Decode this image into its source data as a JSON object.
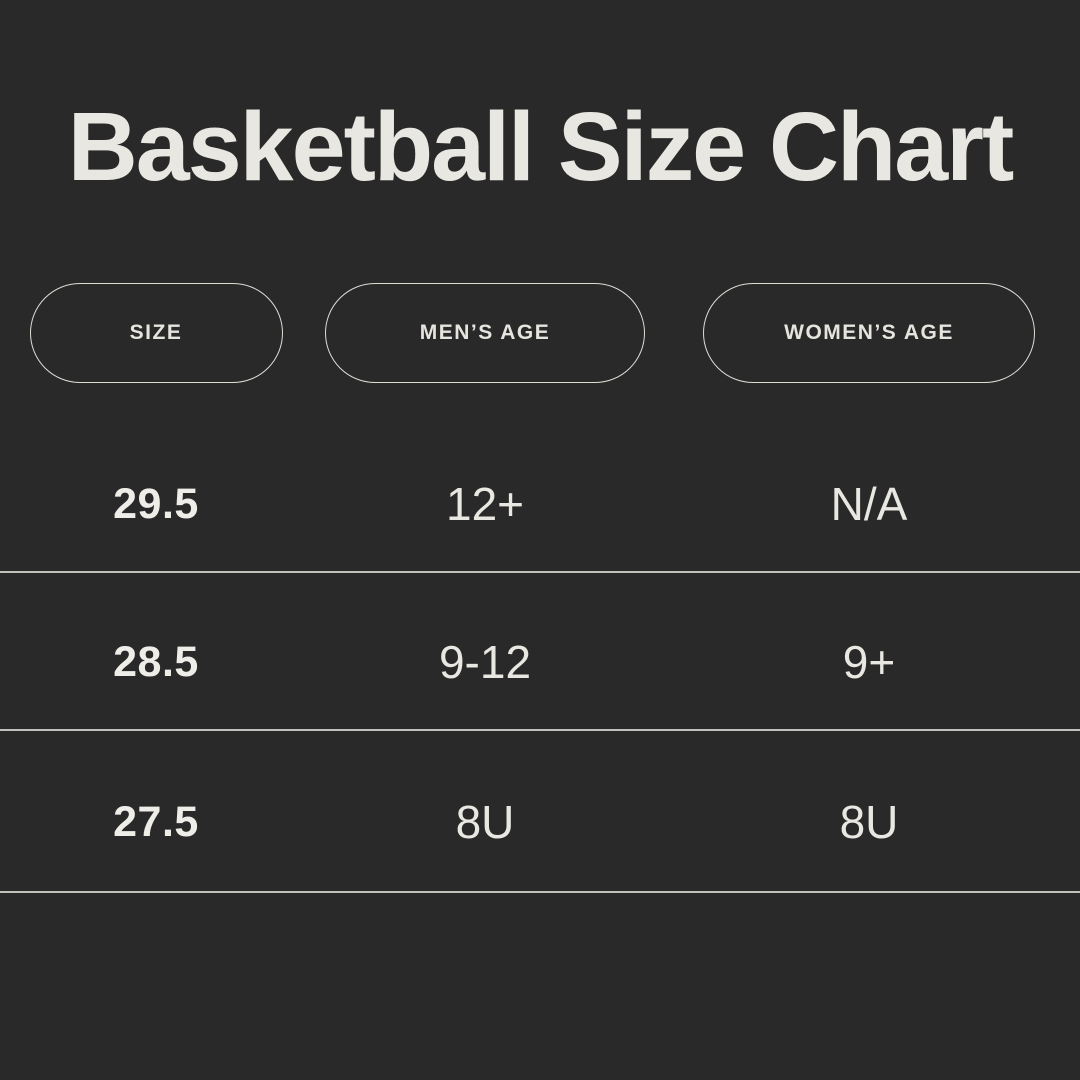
{
  "title": "Basketball Size Chart",
  "colors": {
    "background": "#2a2929",
    "text": "#e9e7e1",
    "pill_border": "#dedcd5",
    "divider": "#d8d6d1"
  },
  "chart_data": {
    "type": "table",
    "title": "Basketball Size Chart",
    "columns": [
      "SIZE",
      "MEN’S AGE",
      "WOMEN’S AGE"
    ],
    "rows": [
      [
        "29.5",
        "12+",
        "N/A"
      ],
      [
        "28.5",
        "9-12",
        "9+"
      ],
      [
        "27.5",
        "8U",
        "8U"
      ]
    ]
  }
}
